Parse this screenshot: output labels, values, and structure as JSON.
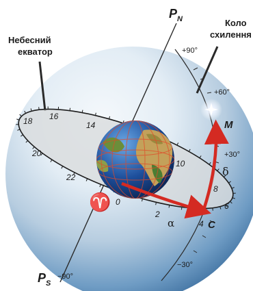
{
  "labels": {
    "north_pole": "P",
    "north_pole_sub": "N",
    "south_pole": "P",
    "south_pole_sub": "S",
    "declination_circle_line1": "Коло",
    "declination_circle_line2": "схилення",
    "celestial_equator_line1": "Небесний",
    "celestial_equator_line2": "екватор",
    "star": "M",
    "point_c": "C",
    "vernal_equinox": "♈",
    "alpha": "α",
    "delta": "δ"
  },
  "declination_marks": [
    "+90°",
    "+60°",
    "+30°",
    "−30°",
    "−90°"
  ],
  "hour_marks": [
    "18",
    "16",
    "14",
    "10",
    "8",
    "6",
    "4",
    "2",
    "0",
    "22",
    "20"
  ],
  "colors": {
    "arrow": "#d42a22",
    "sphere_light": "#f2f7fb",
    "sphere_dark": "#3f74a8",
    "equator_plane": "#dcdcdc"
  }
}
